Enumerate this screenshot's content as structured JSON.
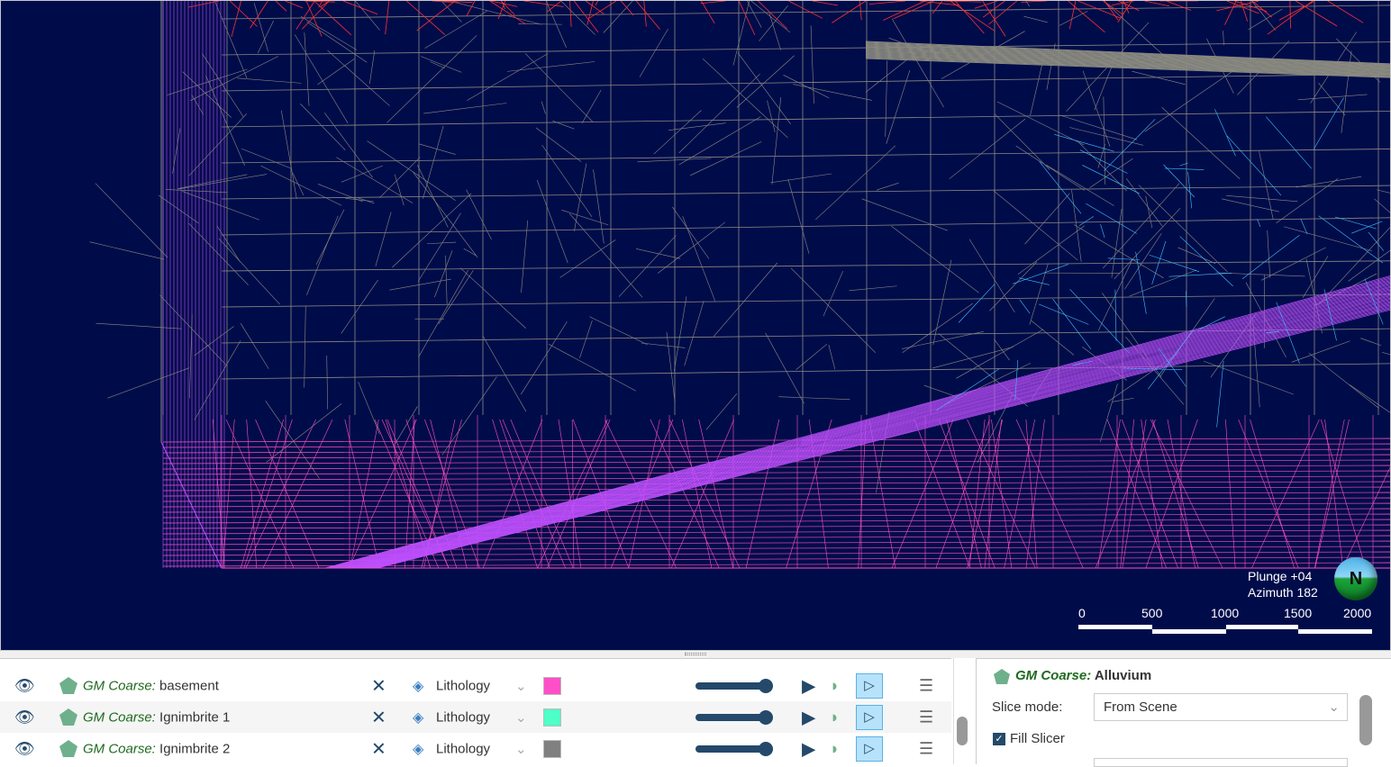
{
  "viewport": {
    "background": "#000c4a",
    "orientation": {
      "plunge": "Plunge +04",
      "azimuth": "Azimuth 182"
    },
    "compass_label": "N",
    "scale_bar": {
      "ticks": [
        "0",
        "500",
        "1000",
        "1500",
        "2000"
      ]
    },
    "wire_colors": {
      "gray": "#8a8a80",
      "pink": "#ff4fc0",
      "magenta": "#c050ff",
      "cyan": "#40c0ff",
      "red": "#ff3030"
    }
  },
  "list": {
    "rows": [
      {
        "prefix": "GM Coarse:",
        "name": "basement",
        "colouring": "Lithology",
        "color": "#ff4fc8"
      },
      {
        "prefix": "GM Coarse:",
        "name": "Ignimbrite 1",
        "colouring": "Lithology",
        "color": "#4fffc8"
      },
      {
        "prefix": "GM Coarse:",
        "name": "Ignimbrite 2",
        "colouring": "Lithology",
        "color": "#808080"
      }
    ]
  },
  "properties": {
    "prefix": "GM Coarse:",
    "name": "Alluvium",
    "slice_mode_label": "Slice mode:",
    "slice_mode_value": "From Scene",
    "fill_slicer_label": "Fill Slicer",
    "fill_slicer_checked": true
  }
}
